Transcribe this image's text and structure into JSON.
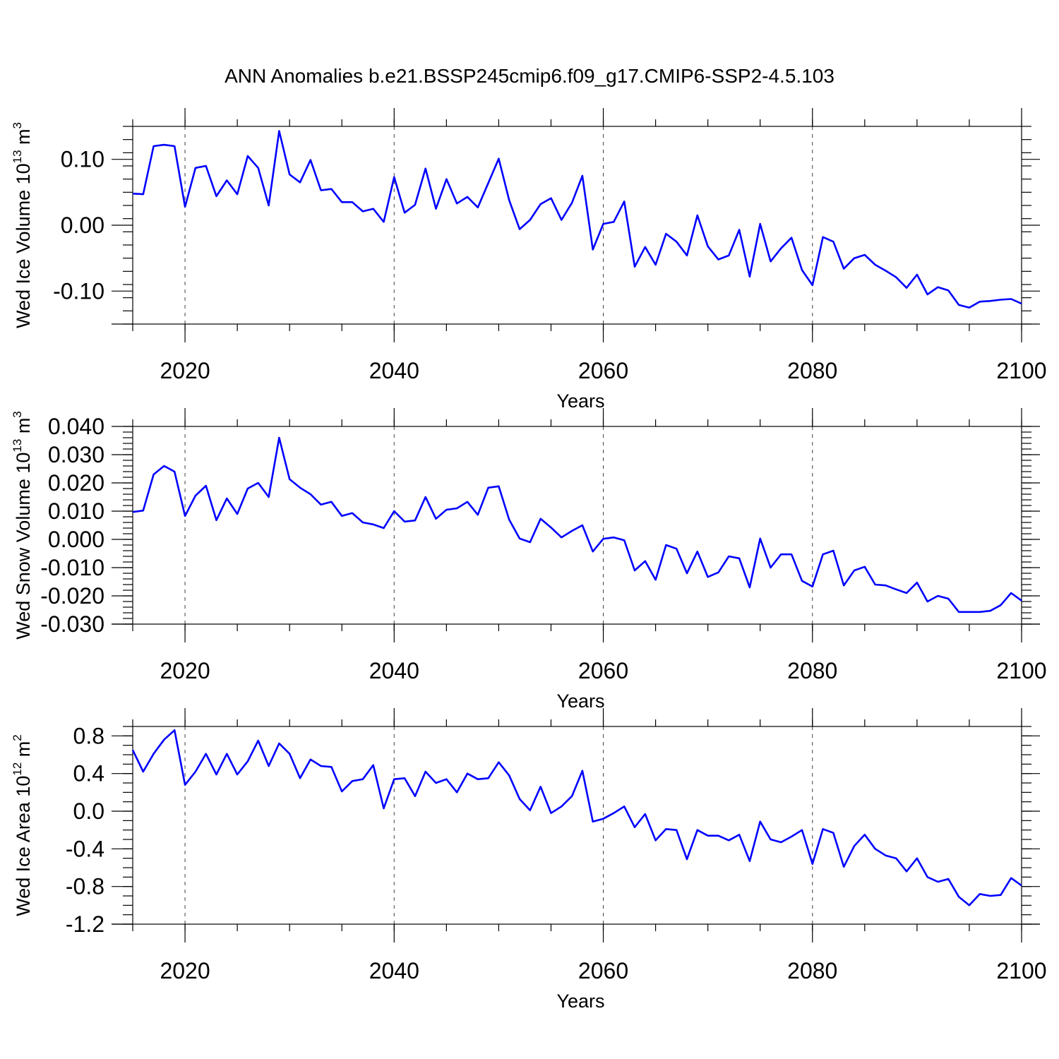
{
  "title": "ANN Anomalies b.e21.BSSP245cmip6.f09_g17.CMIP6-SSP2-4.5.103",
  "colors": {
    "series": "#0000ff",
    "axis": "#000000"
  },
  "chart_data": [
    {
      "type": "line",
      "ylabel": {
        "text": "Wed Ice Volume 10",
        "sup1": "13",
        "mid": " m",
        "sup2": "3"
      },
      "xlabel": "Years",
      "xlim": [
        2015,
        2100
      ],
      "ylim": [
        -0.15,
        0.15
      ],
      "yticks": [
        -0.1,
        0.0,
        0.1
      ],
      "ytick_labels": [
        "-0.10",
        "0.00",
        "0.10"
      ],
      "yminor_step": 0.02,
      "xticks": [
        2020,
        2040,
        2060,
        2080,
        2100
      ],
      "xtick_labels": [
        "2020",
        "2040",
        "2060",
        "2080",
        "2100"
      ],
      "xminor_step": 5,
      "grid": "dashed vertical at major x ticks",
      "series": [
        {
          "x_start": 2015,
          "values": [
            0.048,
            0.047,
            0.12,
            0.122,
            0.12,
            0.028,
            0.087,
            0.09,
            0.044,
            0.068,
            0.047,
            0.105,
            0.087,
            0.03,
            0.143,
            0.077,
            0.065,
            0.099,
            0.053,
            0.055,
            0.035,
            0.035,
            0.021,
            0.025,
            0.005,
            0.073,
            0.019,
            0.031,
            0.086,
            0.025,
            0.07,
            0.033,
            0.043,
            0.027,
            0.064,
            0.101,
            0.038,
            -0.006,
            0.008,
            0.032,
            0.041,
            0.008,
            0.034,
            0.075,
            -0.037,
            0.002,
            0.005,
            0.036,
            -0.063,
            -0.033,
            -0.06,
            -0.013,
            -0.025,
            -0.046,
            0.015,
            -0.032,
            -0.052,
            -0.046,
            -0.007,
            -0.078,
            0.002,
            -0.055,
            -0.035,
            -0.019,
            -0.068,
            -0.091,
            -0.018,
            -0.025,
            -0.066,
            -0.05,
            -0.045,
            -0.06,
            -0.069,
            -0.079,
            -0.095,
            -0.075,
            -0.105,
            -0.094,
            -0.099,
            -0.121,
            -0.125,
            -0.116,
            -0.115,
            -0.113,
            -0.112,
            -0.119
          ]
        }
      ]
    },
    {
      "type": "line",
      "ylabel": {
        "text": "Wed Snow Volume 10",
        "sup1": "13",
        "mid": " m",
        "sup2": "3"
      },
      "xlabel": "Years",
      "xlim": [
        2015,
        2100
      ],
      "ylim": [
        -0.03,
        0.04
      ],
      "yticks": [
        -0.03,
        -0.02,
        -0.01,
        0.0,
        0.01,
        0.02,
        0.03,
        0.04
      ],
      "ytick_labels": [
        "-0.030",
        "-0.020",
        "-0.010",
        "0.000",
        "0.010",
        "0.020",
        "0.030",
        "0.040"
      ],
      "yminor_step": 0.002,
      "xticks": [
        2020,
        2040,
        2060,
        2080,
        2100
      ],
      "xtick_labels": [
        "2020",
        "2040",
        "2060",
        "2080",
        "2100"
      ],
      "xminor_step": 5,
      "grid": "dashed vertical at major x ticks",
      "series": [
        {
          "x_start": 2015,
          "values": [
            0.0097,
            0.0102,
            0.023,
            0.026,
            0.024,
            0.0083,
            0.0155,
            0.019,
            0.0068,
            0.0145,
            0.009,
            0.018,
            0.02,
            0.015,
            0.036,
            0.0213,
            0.0183,
            0.016,
            0.0123,
            0.0133,
            0.0083,
            0.0093,
            0.006,
            0.0053,
            0.004,
            0.01,
            0.0063,
            0.0067,
            0.015,
            0.0073,
            0.0105,
            0.011,
            0.0133,
            0.0087,
            0.0183,
            0.0188,
            0.007,
            0.0003,
            -0.001,
            0.0073,
            0.0042,
            0.0007,
            0.003,
            0.005,
            -0.0043,
            0.0002,
            0.0007,
            -0.0003,
            -0.011,
            -0.0077,
            -0.0143,
            -0.002,
            -0.0033,
            -0.012,
            -0.0043,
            -0.0133,
            -0.0117,
            -0.006,
            -0.0067,
            -0.017,
            0.0003,
            -0.01,
            -0.0053,
            -0.0053,
            -0.0147,
            -0.0167,
            -0.0053,
            -0.004,
            -0.0163,
            -0.011,
            -0.0097,
            -0.016,
            -0.0163,
            -0.0177,
            -0.019,
            -0.0153,
            -0.022,
            -0.02,
            -0.021,
            -0.0257,
            -0.0257,
            -0.0257,
            -0.0253,
            -0.0233,
            -0.019,
            -0.0217
          ]
        }
      ]
    },
    {
      "type": "line",
      "ylabel": {
        "text": "Wed Ice Area 10",
        "sup1": "12",
        "mid": " m",
        "sup2": "2"
      },
      "xlabel": "Years",
      "xlim": [
        2015,
        2100
      ],
      "ylim": [
        -1.2,
        0.9
      ],
      "yticks": [
        -1.2,
        -0.8,
        -0.4,
        0.0,
        0.4,
        0.8
      ],
      "ytick_labels": [
        "-1.2",
        "-0.8",
        "-0.4",
        "0.0",
        "0.4",
        "0.8"
      ],
      "yminor_step": 0.1,
      "xticks": [
        2020,
        2040,
        2060,
        2080,
        2100
      ],
      "xtick_labels": [
        "2020",
        "2040",
        "2060",
        "2080",
        "2100"
      ],
      "xminor_step": 5,
      "grid": "dashed vertical at major x ticks",
      "series": [
        {
          "x_start": 2015,
          "values": [
            0.65,
            0.42,
            0.61,
            0.76,
            0.86,
            0.28,
            0.42,
            0.61,
            0.39,
            0.61,
            0.39,
            0.53,
            0.75,
            0.48,
            0.72,
            0.61,
            0.35,
            0.55,
            0.48,
            0.47,
            0.21,
            0.32,
            0.34,
            0.49,
            0.03,
            0.34,
            0.35,
            0.16,
            0.42,
            0.3,
            0.34,
            0.2,
            0.4,
            0.34,
            0.35,
            0.52,
            0.38,
            0.13,
            0.01,
            0.26,
            -0.02,
            0.05,
            0.16,
            0.43,
            -0.11,
            -0.08,
            -0.02,
            0.05,
            -0.17,
            -0.03,
            -0.31,
            -0.19,
            -0.2,
            -0.51,
            -0.2,
            -0.26,
            -0.26,
            -0.31,
            -0.25,
            -0.53,
            -0.11,
            -0.3,
            -0.33,
            -0.27,
            -0.2,
            -0.56,
            -0.19,
            -0.23,
            -0.59,
            -0.37,
            -0.25,
            -0.4,
            -0.47,
            -0.5,
            -0.64,
            -0.5,
            -0.7,
            -0.75,
            -0.72,
            -0.91,
            -1.0,
            -0.88,
            -0.9,
            -0.89,
            -0.71,
            -0.79
          ]
        }
      ]
    }
  ]
}
